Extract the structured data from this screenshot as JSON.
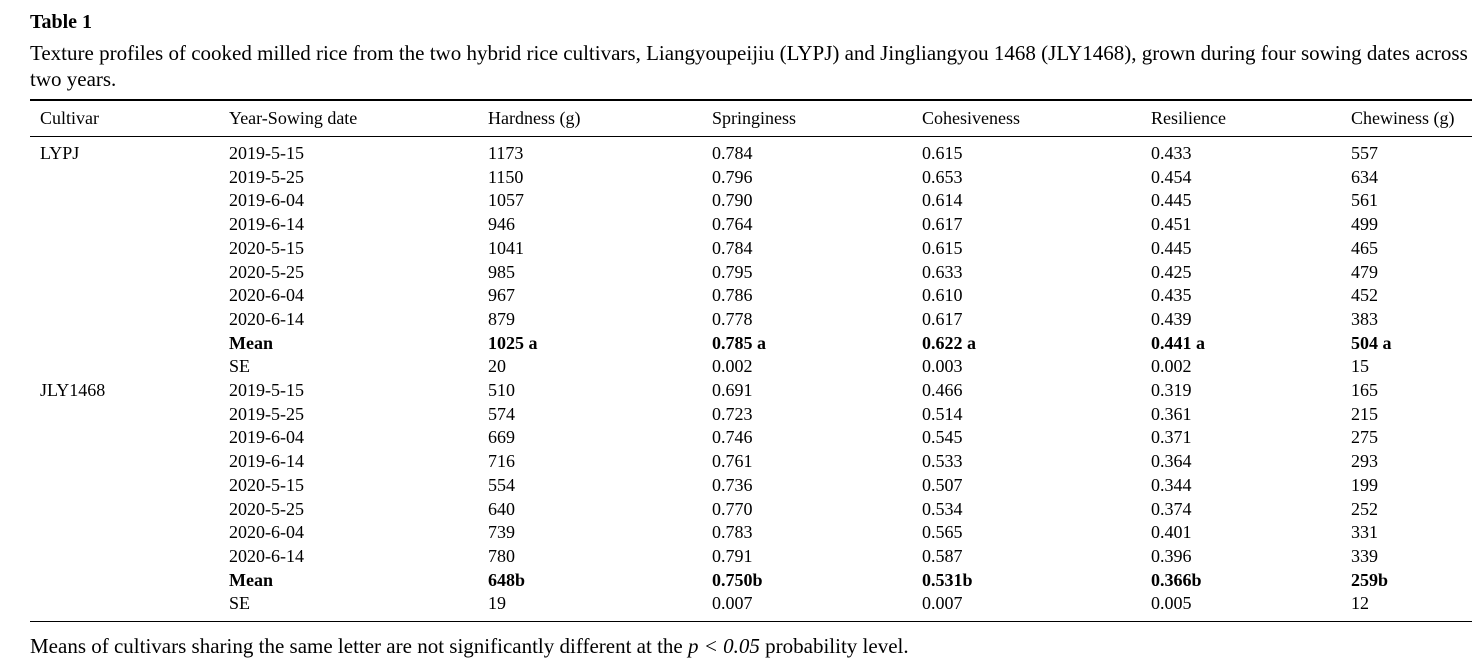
{
  "table": {
    "label": "Table 1",
    "caption": "Texture profiles of cooked milled rice from the two hybrid rice cultivars, Liangyoupeijiu (LYPJ) and Jingliangyou 1468 (JLY1468), grown during four sowing dates across two years.",
    "columns": [
      "Cultivar",
      "Year-Sowing date",
      "Hardness (g)",
      "Springiness",
      "Cohesiveness",
      "Resilience",
      "Chewiness (g)"
    ],
    "rows": [
      {
        "cells": [
          "LYPJ",
          "2019-5-15",
          "1173",
          "0.784",
          "0.615",
          "0.433",
          "557"
        ],
        "bold": false
      },
      {
        "cells": [
          "",
          "2019-5-25",
          "1150",
          "0.796",
          "0.653",
          "0.454",
          "634"
        ],
        "bold": false
      },
      {
        "cells": [
          "",
          "2019-6-04",
          "1057",
          "0.790",
          "0.614",
          "0.445",
          "561"
        ],
        "bold": false
      },
      {
        "cells": [
          "",
          "2019-6-14",
          "946",
          "0.764",
          "0.617",
          "0.451",
          "499"
        ],
        "bold": false
      },
      {
        "cells": [
          "",
          "2020-5-15",
          "1041",
          "0.784",
          "0.615",
          "0.445",
          "465"
        ],
        "bold": false
      },
      {
        "cells": [
          "",
          "2020-5-25",
          "985",
          "0.795",
          "0.633",
          "0.425",
          "479"
        ],
        "bold": false
      },
      {
        "cells": [
          "",
          "2020-6-04",
          "967",
          "0.786",
          "0.610",
          "0.435",
          "452"
        ],
        "bold": false
      },
      {
        "cells": [
          "",
          "2020-6-14",
          "879",
          "0.778",
          "0.617",
          "0.439",
          "383"
        ],
        "bold": false
      },
      {
        "cells": [
          "",
          "Mean",
          "1025 a",
          "0.785 a",
          "0.622 a",
          "0.441 a",
          "504 a"
        ],
        "bold": true
      },
      {
        "cells": [
          "",
          "SE",
          "20",
          "0.002",
          "0.003",
          "0.002",
          "15"
        ],
        "bold": false
      },
      {
        "cells": [
          "JLY1468",
          "2019-5-15",
          "510",
          "0.691",
          "0.466",
          "0.319",
          "165"
        ],
        "bold": false
      },
      {
        "cells": [
          "",
          "2019-5-25",
          "574",
          "0.723",
          "0.514",
          "0.361",
          "215"
        ],
        "bold": false
      },
      {
        "cells": [
          "",
          "2019-6-04",
          "669",
          "0.746",
          "0.545",
          "0.371",
          "275"
        ],
        "bold": false
      },
      {
        "cells": [
          "",
          "2019-6-14",
          "716",
          "0.761",
          "0.533",
          "0.364",
          "293"
        ],
        "bold": false
      },
      {
        "cells": [
          "",
          "2020-5-15",
          "554",
          "0.736",
          "0.507",
          "0.344",
          "199"
        ],
        "bold": false
      },
      {
        "cells": [
          "",
          "2020-5-25",
          "640",
          "0.770",
          "0.534",
          "0.374",
          "252"
        ],
        "bold": false
      },
      {
        "cells": [
          "",
          "2020-6-04",
          "739",
          "0.783",
          "0.565",
          "0.401",
          "331"
        ],
        "bold": false
      },
      {
        "cells": [
          "",
          "2020-6-14",
          "780",
          "0.791",
          "0.587",
          "0.396",
          "339"
        ],
        "bold": false
      },
      {
        "cells": [
          "",
          "Mean",
          "648b",
          "0.750b",
          "0.531b",
          "0.366b",
          "259b"
        ],
        "bold": true
      },
      {
        "cells": [
          "",
          "SE",
          "19",
          "0.007",
          "0.007",
          "0.005",
          "12"
        ],
        "bold": false
      }
    ],
    "footnote": {
      "before": "Means of cultivars sharing the same letter are not significantly different at the ",
      "italic": "p < 0.05",
      "after": " probability level."
    },
    "colors": {
      "text": "#000000",
      "background": "#ffffff",
      "rule": "#000000"
    }
  }
}
